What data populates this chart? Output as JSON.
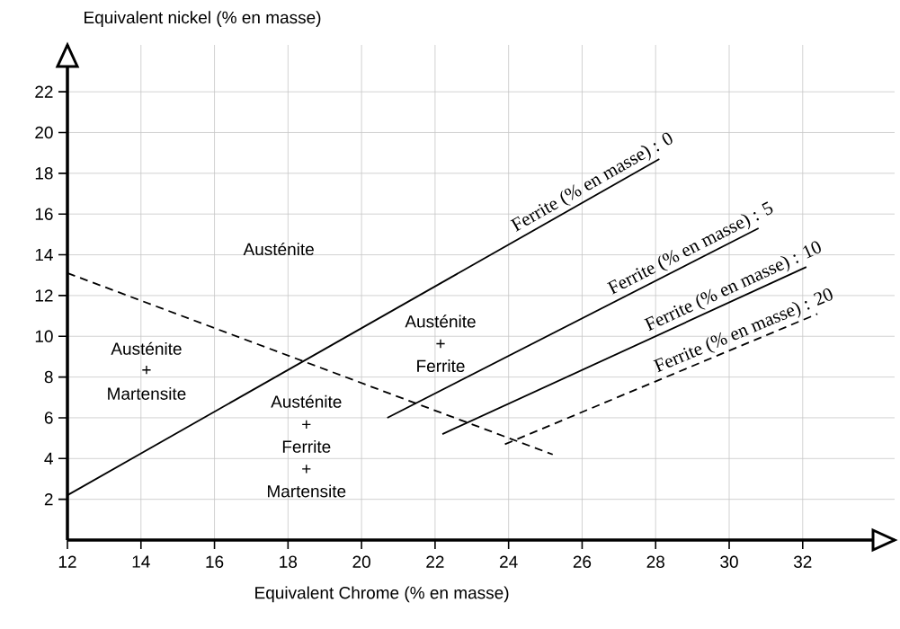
{
  "chart_data": {
    "type": "line",
    "xlabel": "Equivalent Chrome (% en masse)",
    "ylabel": "Equivalent nickel (% en masse)",
    "xlim": [
      12,
      34.5
    ],
    "ylim": [
      0,
      24.3
    ],
    "xticks": [
      12,
      14,
      16,
      18,
      20,
      22,
      24,
      26,
      28,
      30,
      32
    ],
    "yticks": [
      2,
      4,
      6,
      8,
      10,
      12,
      14,
      16,
      18,
      20,
      22
    ],
    "grid": true,
    "marker": "none",
    "series": [
      {
        "color": "#000000",
        "line_style": "dashed",
        "x": [
          12,
          25.2
        ],
        "values": [
          13.1,
          4.2
        ]
      },
      {
        "name": "Ferrite (% en masse) : 0",
        "color": "#000000",
        "line_style": "solid",
        "x": [
          12,
          28.1
        ],
        "values": [
          2.2,
          18.7
        ]
      },
      {
        "name": "Ferrite (% en masse) : 5",
        "color": "#000000",
        "line_style": "solid",
        "x": [
          20.7,
          30.8
        ],
        "values": [
          6.0,
          15.3
        ]
      },
      {
        "name": "Ferrite (% en masse) : 10",
        "color": "#000000",
        "line_style": "solid",
        "x": [
          22.2,
          32.1
        ],
        "values": [
          5.2,
          13.4
        ]
      },
      {
        "name": "Ferrite (% en masse) : 20",
        "color": "#000000",
        "line_style": "dashed",
        "x": [
          23.9,
          32.4
        ],
        "values": [
          4.7,
          11.1
        ]
      }
    ],
    "annotations": [
      "Austénite",
      "Austénite",
      "+",
      "Martensite",
      "Austénite",
      "+",
      "Ferrite",
      "Austénite",
      "+",
      "Ferrite",
      "+",
      "Martensite"
    ]
  }
}
